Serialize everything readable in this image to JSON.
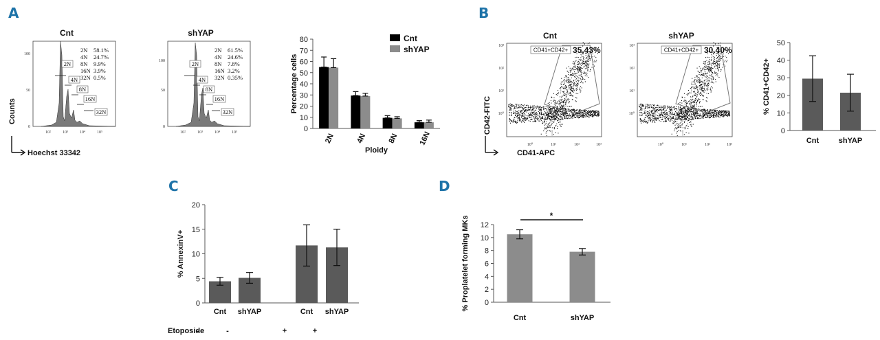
{
  "panels": {
    "A": {
      "label": "A",
      "hist_cnt": {
        "title": "Cnt",
        "table": [
          {
            "ploidy": "2N",
            "pct": "58.1%"
          },
          {
            "ploidy": "4N",
            "pct": "24.7%"
          },
          {
            "ploidy": "8N",
            "pct": "9.9%"
          },
          {
            "ploidy": "16N",
            "pct": "3.9%"
          },
          {
            "ploidy": "32N",
            "pct": "0.5%"
          }
        ],
        "yticks": [
          "0",
          "50",
          "100"
        ],
        "xticks": [
          "10²",
          "10³",
          "10⁴",
          "10⁵"
        ]
      },
      "hist_shyap": {
        "title": "shYAP",
        "table": [
          {
            "ploidy": "2N",
            "pct": "61.5%"
          },
          {
            "ploidy": "4N",
            "pct": "24.6%"
          },
          {
            "ploidy": "8N",
            "pct": "7.8%"
          },
          {
            "ploidy": "16N",
            "pct": "3.2%"
          },
          {
            "ploidy": "32N",
            "pct": "0.35%"
          }
        ],
        "yticks": [
          "0",
          "50",
          "100"
        ],
        "xticks": [
          "10²",
          "10³",
          "10⁴",
          "10⁵"
        ]
      },
      "hist_axis": {
        "y": "Counts",
        "x": "Hoechst 33342"
      },
      "gate_labels": [
        "2N",
        "4N",
        "8N",
        "16N",
        "32N"
      ]
    },
    "B": {
      "label": "B",
      "flow_cnt": {
        "title": "Cnt",
        "gate": "CD41+CD42+",
        "pct": "35.43%"
      },
      "flow_shyap": {
        "title": "shYAP",
        "gate": "CD41+CD42+",
        "pct": "30.40%"
      },
      "flow_axis": {
        "y": "CD42-FITC",
        "x": "CD41-APC"
      },
      "flow_ticks": [
        "10⁰",
        "10¹",
        "10²",
        "10³"
      ]
    },
    "C": {
      "label": "C"
    },
    "D": {
      "label": "D"
    }
  },
  "chart_data": [
    {
      "id": "A-bar",
      "type": "bar",
      "categories": [
        "2N",
        "4N",
        "8N",
        "16N"
      ],
      "series": [
        {
          "name": "Cnt",
          "color": "#000000",
          "values": [
            55,
            29.5,
            9.5,
            5.5
          ],
          "errors": [
            9,
            3.5,
            2,
            1.5
          ]
        },
        {
          "name": "shYAP",
          "color": "#8c8c8c",
          "values": [
            54.5,
            29,
            9,
            5.5
          ],
          "errors": [
            8,
            2.5,
            1.5,
            2
          ]
        }
      ],
      "xlabel": "Ploidy",
      "ylabel": "Percentage cells",
      "ylim": [
        0,
        80
      ],
      "yticks": [
        0,
        10,
        20,
        30,
        40,
        50,
        60,
        70,
        80
      ],
      "legend": "top-right",
      "grid": false
    },
    {
      "id": "B-bar",
      "type": "bar",
      "categories": [
        "Cnt",
        "shYAP"
      ],
      "values": [
        29.5,
        21.5
      ],
      "errors": [
        13,
        10.5
      ],
      "color": "#5a5a5a",
      "ylabel": "% CD41+CD42+",
      "ylim": [
        0,
        50
      ],
      "yticks": [
        0,
        10,
        20,
        30,
        40,
        50
      ],
      "grid": false
    },
    {
      "id": "C-bar",
      "type": "bar",
      "categories": [
        "Cnt",
        "shYAP",
        "Cnt",
        "shYAP"
      ],
      "values": [
        4.4,
        5.1,
        11.7,
        11.3
      ],
      "errors": [
        0.8,
        1.1,
        4.2,
        3.7
      ],
      "color": "#5a5a5a",
      "ylabel": "% AnnexinV+",
      "ylim": [
        0,
        20
      ],
      "yticks": [
        0,
        5,
        10,
        15,
        20
      ],
      "row_label": "Etoposide",
      "row_values": [
        "-",
        "-",
        "+",
        "+"
      ],
      "grid": false
    },
    {
      "id": "D-bar",
      "type": "bar",
      "categories": [
        "Cnt",
        "shYAP"
      ],
      "values": [
        10.5,
        7.8
      ],
      "errors": [
        0.7,
        0.5
      ],
      "color": "#8c8c8c",
      "ylabel": "% Proplatelet forming MKs",
      "ylim": [
        0,
        12
      ],
      "yticks": [
        0,
        2,
        4,
        6,
        8,
        10,
        12
      ],
      "significance": "*",
      "grid": false
    }
  ]
}
